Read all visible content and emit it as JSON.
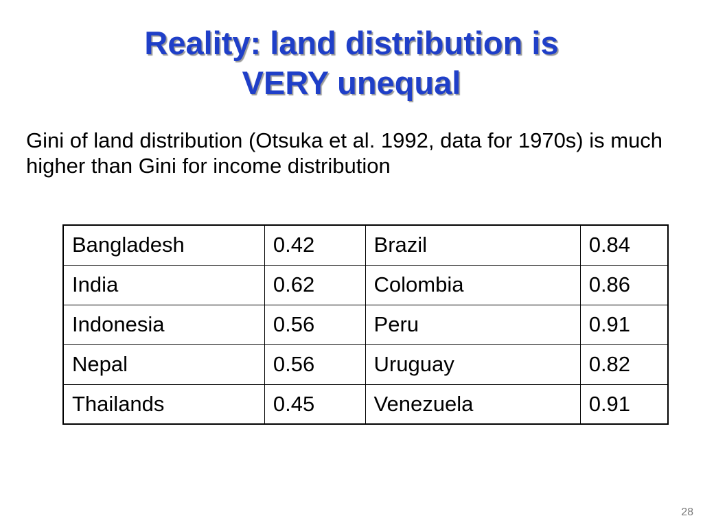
{
  "slide": {
    "title_line1": "Reality: land distribution is",
    "title_line2": "VERY unequal",
    "body": "Gini of land distribution (Otsuka et  al. 1992, data for 1970s) is much higher than Gini for income distribution",
    "page_number": "28",
    "title_color": "#1f3fc8"
  },
  "table": {
    "rows": [
      [
        "Bangladesh",
        "0.42",
        "Brazil",
        "0.84"
      ],
      [
        "India",
        "0.62",
        "Colombia",
        "0.86"
      ],
      [
        "Indonesia",
        "0.56",
        "Peru",
        "0.91"
      ],
      [
        "Nepal",
        "0.56",
        "Uruguay",
        "0.82"
      ],
      [
        "Thailands",
        "0.45",
        "Venezuela",
        "0.91"
      ]
    ]
  }
}
